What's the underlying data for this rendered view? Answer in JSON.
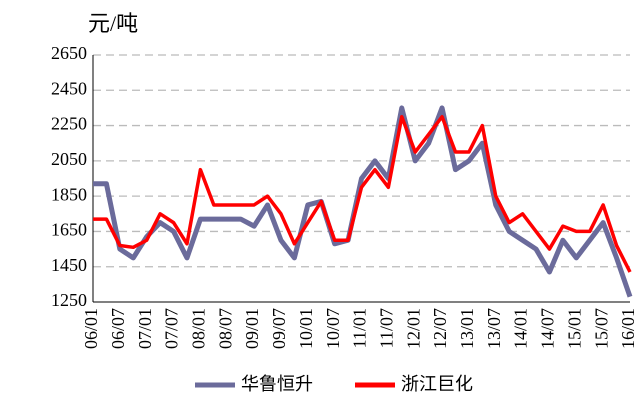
{
  "chart_data": {
    "type": "line",
    "y_label": "元/吨",
    "categories": [
      "06/01",
      null,
      "06/07",
      null,
      "07/01",
      null,
      "07/07",
      null,
      "08/01",
      null,
      "08/07",
      null,
      "09/01",
      null,
      "09/07",
      null,
      "10/01",
      null,
      "10/07",
      null,
      "11/01",
      null,
      "11/07",
      null,
      "12/01",
      null,
      "12/07",
      null,
      "13/01",
      null,
      "13/07",
      null,
      "14/01",
      null,
      "14/07",
      null,
      "15/01",
      null,
      "15/07",
      null,
      "16/01"
    ],
    "series": [
      {
        "name": "华鲁恒升",
        "color": "#6b6b9b",
        "values": [
          1920,
          1920,
          1550,
          1500,
          1620,
          1700,
          1650,
          1500,
          1720,
          1720,
          1720,
          1720,
          1680,
          1800,
          1600,
          1500,
          1800,
          1820,
          1580,
          1600,
          1950,
          2050,
          1950,
          2350,
          2050,
          2150,
          2350,
          2000,
          2050,
          2150,
          1800,
          1650,
          1600,
          1550,
          1420,
          1600,
          1500,
          1600,
          1700,
          1500,
          1280
        ]
      },
      {
        "name": "浙江巨化",
        "color": "#ff0000",
        "values": [
          1720,
          1720,
          1570,
          1560,
          1600,
          1750,
          1700,
          1580,
          2000,
          1800,
          1800,
          1800,
          1800,
          1850,
          1750,
          1580,
          1700,
          1820,
          1600,
          1600,
          1900,
          2000,
          1900,
          2300,
          2100,
          2200,
          2300,
          2100,
          2100,
          2250,
          1850,
          1700,
          1750,
          1650,
          1550,
          1680,
          1650,
          1650,
          1800,
          1570,
          1420
        ]
      }
    ],
    "ylim": [
      1250,
      2650
    ],
    "yticks": [
      1250,
      1450,
      1650,
      1850,
      2050,
      2250,
      2450,
      2650
    ],
    "grid": true
  }
}
